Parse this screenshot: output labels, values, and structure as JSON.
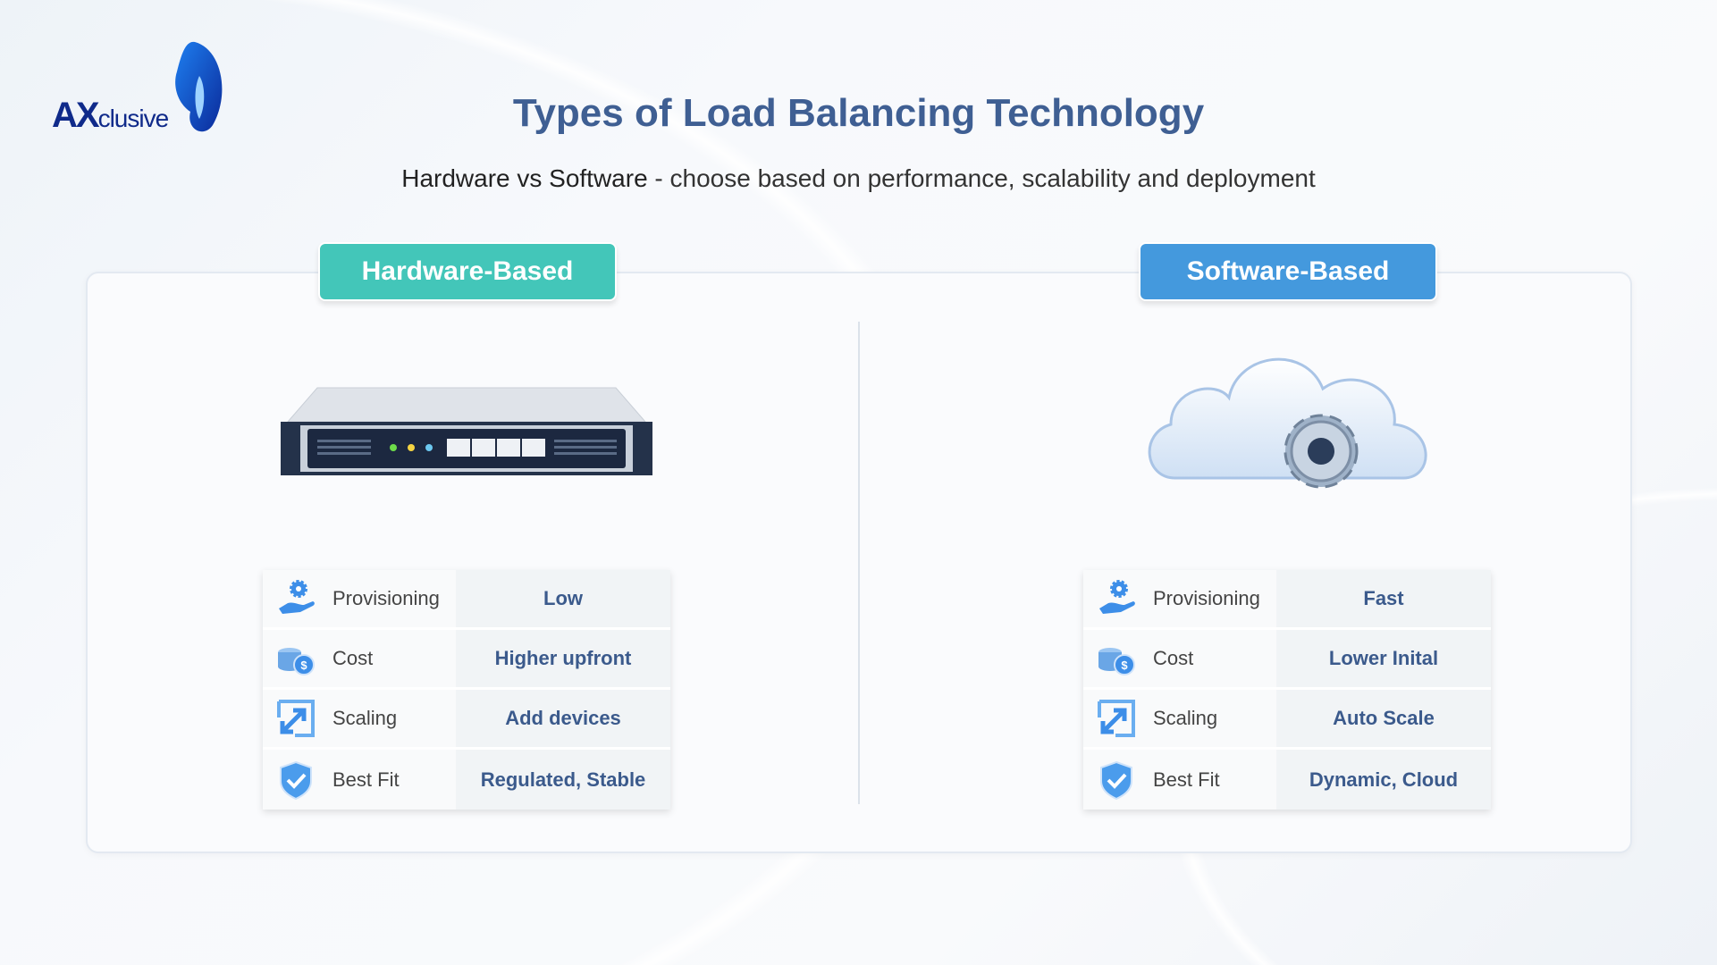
{
  "logo": {
    "text": "AXclusive"
  },
  "header": {
    "title": "Types of Load Balancing Technology",
    "subtitle_bold": "Hardware vs Software",
    "subtitle_rest": " - choose based on performance, scalability and deployment"
  },
  "colors": {
    "hardware": "#43c6b9",
    "software": "#4499dd",
    "value_text": "#3b5a8c",
    "title": "#3f5f93"
  },
  "hardware": {
    "label": "Hardware-Based",
    "image": "rack-server-icon",
    "rows": [
      {
        "icon": "provisioning-icon",
        "label": "Provisioning",
        "value": "Low"
      },
      {
        "icon": "coins-icon",
        "label": "Cost",
        "value": "Higher upfront"
      },
      {
        "icon": "scaling-icon",
        "label": "Scaling",
        "value": "Add devices"
      },
      {
        "icon": "shield-check-icon",
        "label": "Best Fit",
        "value": "Regulated, Stable"
      }
    ]
  },
  "software": {
    "label": "Software-Based",
    "image": "cloud-gear-icon",
    "rows": [
      {
        "icon": "provisioning-icon",
        "label": "Provisioning",
        "value": "Fast"
      },
      {
        "icon": "coins-icon",
        "label": "Cost",
        "value": "Lower Inital"
      },
      {
        "icon": "scaling-icon",
        "label": "Scaling",
        "value": "Auto Scale"
      },
      {
        "icon": "shield-check-icon",
        "label": "Best Fit",
        "value": "Dynamic, Cloud"
      }
    ]
  }
}
